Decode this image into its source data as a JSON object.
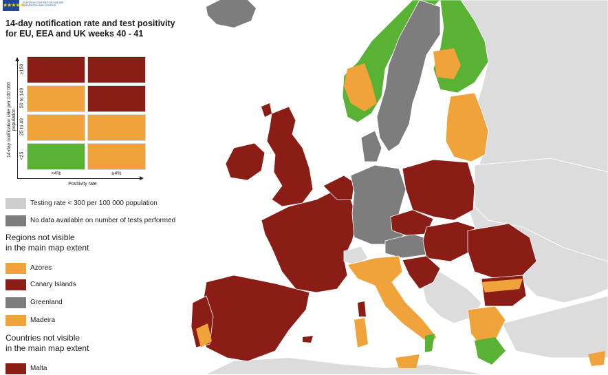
{
  "logo": {
    "stars": "★★★★★",
    "org": "EUROPEAN CENTRE FOR DISEASE PREVENTION AND CONTROL"
  },
  "title": {
    "line1": "14-day notification rate and test positivity",
    "line2": "for EU, EEA and UK weeks 40 - 41"
  },
  "colors": {
    "dark_red": "#8a1e16",
    "orange": "#f0a33a",
    "green": "#59b234",
    "dark_grey": "#7d7d7d",
    "light_grey": "#cfcfcf",
    "non_eu": "#dcdcdc",
    "sea": "#ffffff"
  },
  "matrix": {
    "y_label": "14-day notification rate per 100 000 population",
    "x_label": "Positivity rate",
    "row_labels": [
      "≥150",
      "50 to 149",
      "25 to 49",
      "<25"
    ],
    "col_labels": [
      "<4%",
      "≥4%"
    ],
    "cells": [
      [
        "#8a1e16",
        "#8a1e16"
      ],
      [
        "#f0a33a",
        "#8a1e16"
      ],
      [
        "#f0a33a",
        "#f0a33a"
      ],
      [
        "#59b234",
        "#f0a33a"
      ]
    ]
  },
  "legend": [
    {
      "label": "Testing rate < 300 per 100 000 population",
      "color": "#cfcfcf"
    },
    {
      "label": "No data available on number of tests performed",
      "color": "#7d7d7d"
    }
  ],
  "regions_heading": {
    "line1": "Regions not visible",
    "line2": "in the main map extent"
  },
  "regions": [
    {
      "label": "Azores",
      "color": "#f0a33a"
    },
    {
      "label": "Canary Islands",
      "color": "#8a1e16"
    },
    {
      "label": "Greenland",
      "color": "#7d7d7d"
    },
    {
      "label": "Madeira",
      "color": "#f0a33a"
    }
  ],
  "countries_heading": {
    "line1": "Countries not visible",
    "line2": "in the main map extent"
  },
  "countries": [
    {
      "label": "Malta",
      "color": "#8a1e16"
    }
  ]
}
